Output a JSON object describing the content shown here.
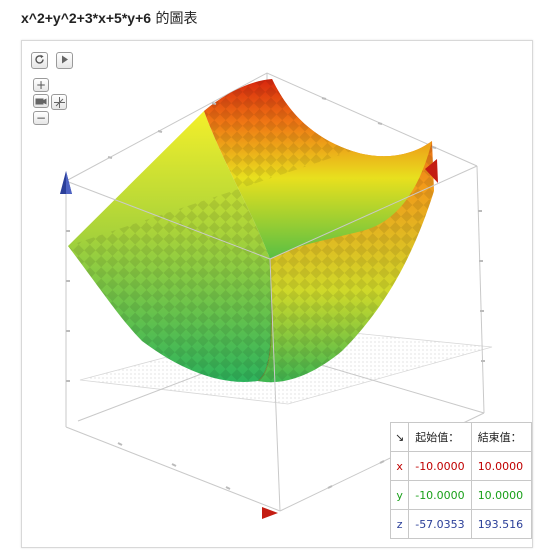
{
  "title": {
    "expression": "x^2+y^2+3*x+5*y+6",
    "suffix": " 的圖表"
  },
  "controls": {
    "reset_icon": "reload-icon",
    "play_icon": "play-icon",
    "zoom_in": "+",
    "zoom_out": "−",
    "camera_icon": "camera-icon",
    "move_icon": "move-axes-icon"
  },
  "ranges": {
    "corner": "↘",
    "start_label": "起始值：",
    "end_label": "結束值：",
    "rows": [
      {
        "axis": "x",
        "start": "-10.0000",
        "end": "10.0000"
      },
      {
        "axis": "y",
        "start": "-10.0000",
        "end": "10.0000"
      },
      {
        "axis": "z",
        "start": "-57.0353",
        "end": "193.516"
      }
    ]
  },
  "colors": {
    "x_axis": "#c00000",
    "y_axis": "#1aa01a",
    "z_axis": "#2b3f99",
    "surface_low": "#2fb35a",
    "surface_mid": "#f2e21c",
    "surface_high": "#d62a12"
  }
}
